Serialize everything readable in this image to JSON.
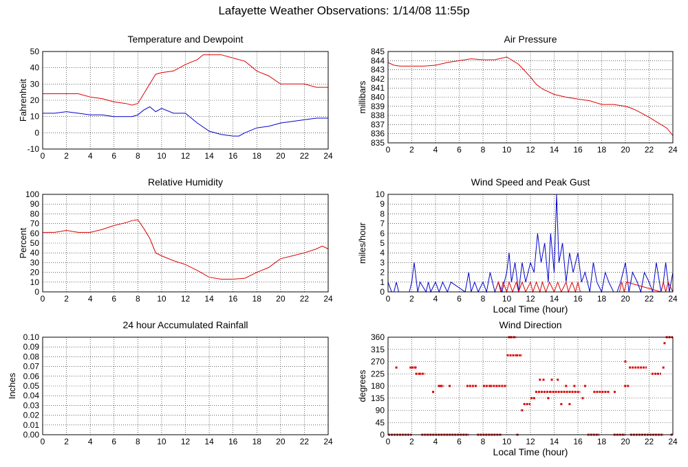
{
  "page": {
    "title": "Lafayette Weather Observations: 1/14/08 11:55p"
  },
  "colors": {
    "red": "#dd0000",
    "blue": "#0000cc",
    "grid": "#000000"
  },
  "chart_data": [
    {
      "id": "temp",
      "type": "line",
      "title": "Temperature and Dewpoint",
      "xlabel": "",
      "ylabel": "Fahrenheit",
      "xlim": [
        0,
        24
      ],
      "ylim": [
        -10,
        50
      ],
      "xticks": [
        "0",
        "2",
        "4",
        "6",
        "8",
        "10",
        "12",
        "14",
        "16",
        "18",
        "20",
        "22",
        "24"
      ],
      "yticks": [
        "-10",
        "0",
        "10",
        "20",
        "30",
        "40",
        "50"
      ],
      "grid": true,
      "series": [
        {
          "color": "#dd0000",
          "x": [
            0,
            1,
            2,
            3,
            4,
            5,
            6,
            7,
            7.5,
            8,
            8.5,
            9,
            9.5,
            10,
            11,
            12,
            13,
            13.5,
            14,
            15,
            16,
            17,
            18,
            19,
            20,
            21,
            22,
            23,
            24
          ],
          "y": [
            24,
            24,
            24,
            24,
            22,
            21,
            19,
            18,
            17,
            18,
            24,
            30,
            36,
            37,
            38,
            42,
            45,
            48,
            48,
            48,
            46,
            44,
            38,
            35,
            30,
            30,
            30,
            28,
            28
          ]
        },
        {
          "color": "#0000cc",
          "x": [
            0,
            1,
            2,
            3,
            4,
            5,
            6,
            7,
            7.5,
            8,
            8.5,
            9,
            9.5,
            10,
            11,
            12,
            13,
            14,
            15,
            16,
            16.5,
            17,
            18,
            19,
            20,
            21,
            22,
            23,
            24
          ],
          "y": [
            12,
            12,
            13,
            12,
            11,
            11,
            10,
            10,
            10,
            11,
            14,
            16,
            13,
            15,
            12,
            12,
            6,
            1,
            -1,
            -2,
            -2,
            0,
            3,
            4,
            6,
            7,
            8,
            9,
            9
          ]
        }
      ]
    },
    {
      "id": "pressure",
      "type": "line",
      "title": "Air Pressure",
      "xlabel": "",
      "ylabel": "millibars",
      "xlim": [
        0,
        24
      ],
      "ylim": [
        835,
        845
      ],
      "xticks": [
        "0",
        "2",
        "4",
        "6",
        "8",
        "10",
        "12",
        "14",
        "16",
        "18",
        "20",
        "22",
        "24"
      ],
      "yticks": [
        "835",
        "836",
        "837",
        "838",
        "839",
        "840",
        "841",
        "842",
        "843",
        "844",
        "845"
      ],
      "grid": true,
      "series": [
        {
          "color": "#dd0000",
          "x": [
            0,
            0.5,
            1,
            2,
            3,
            4,
            5,
            6,
            7,
            8,
            9,
            10,
            11,
            12,
            12.5,
            13,
            14,
            15,
            16,
            17,
            18,
            19,
            20,
            20.5,
            21,
            22,
            23,
            23.5,
            24
          ],
          "y": [
            843.8,
            843.5,
            843.4,
            843.4,
            843.4,
            843.5,
            843.8,
            844,
            844.2,
            844.1,
            844.1,
            844.4,
            843.6,
            842.2,
            841.4,
            840.9,
            840.3,
            840,
            839.8,
            839.6,
            839.2,
            839.2,
            839,
            838.8,
            838.5,
            837.8,
            837,
            836.6,
            835.8
          ]
        }
      ]
    },
    {
      "id": "humidity",
      "type": "line",
      "title": "Relative Humidity",
      "xlabel": "",
      "ylabel": "Percent",
      "xlim": [
        0,
        24
      ],
      "ylim": [
        0,
        100
      ],
      "xticks": [
        "0",
        "2",
        "4",
        "6",
        "8",
        "10",
        "12",
        "14",
        "16",
        "18",
        "20",
        "22",
        "24"
      ],
      "yticks": [
        "0",
        "10",
        "20",
        "30",
        "40",
        "50",
        "60",
        "70",
        "80",
        "90",
        "100"
      ],
      "grid": true,
      "series": [
        {
          "color": "#dd0000",
          "x": [
            0,
            1,
            2,
            3,
            4,
            5,
            6,
            7,
            7.5,
            8,
            8.5,
            9,
            9.5,
            10,
            11,
            12,
            13,
            14,
            15,
            16,
            17,
            18,
            19,
            20,
            21,
            22,
            23,
            23.5,
            24
          ],
          "y": [
            61,
            61,
            63,
            61,
            61,
            64,
            68,
            71,
            73,
            74,
            65,
            55,
            40,
            37,
            32,
            28,
            22,
            15,
            13,
            13,
            14,
            20,
            25,
            34,
            37,
            40,
            44,
            47,
            44
          ]
        }
      ]
    },
    {
      "id": "wind",
      "type": "line",
      "title": "Wind Speed and Peak Gust",
      "xlabel": "Local Time (hour)",
      "ylabel": "miles/hour",
      "xlim": [
        0,
        24
      ],
      "ylim": [
        0,
        10
      ],
      "xticks": [
        "0",
        "2",
        "4",
        "6",
        "8",
        "10",
        "12",
        "14",
        "16",
        "18",
        "20",
        "22",
        "24"
      ],
      "yticks": [
        "0",
        "1",
        "2",
        "3",
        "4",
        "5",
        "6",
        "7",
        "8",
        "9",
        "10"
      ],
      "grid": true,
      "series": [
        {
          "color": "#0000cc",
          "x": [
            0,
            0.3,
            0.5,
            0.7,
            0.9,
            1.8,
            2,
            2.2,
            2.5,
            2.7,
            3.2,
            3.4,
            3.6,
            4,
            4.3,
            4.6,
            5,
            5.3,
            6.5,
            6.8,
            7,
            7.3,
            7.6,
            8,
            8.3,
            8.6,
            9,
            9.3,
            9.6,
            10,
            10.2,
            10.4,
            10.7,
            11,
            11.3,
            11.6,
            12,
            12.3,
            12.6,
            12.9,
            13.2,
            13.5,
            13.7,
            14,
            14.2,
            14.4,
            14.7,
            15,
            15.3,
            15.6,
            16,
            16.3,
            16.6,
            17,
            17.3,
            17.6,
            18,
            18.3,
            18.6,
            19,
            19.3,
            19.6,
            20,
            20.3,
            20.6,
            21,
            21.3,
            21.6,
            22,
            22.3,
            22.6,
            23,
            23.2,
            23.4,
            23.7,
            24
          ],
          "y": [
            1,
            0,
            0,
            1,
            0,
            0,
            1,
            3,
            0,
            1,
            0,
            1,
            0,
            1,
            0,
            1,
            0,
            1,
            0,
            2,
            0,
            1,
            0,
            1,
            0,
            2,
            0,
            1,
            0,
            2,
            4,
            1,
            3,
            0,
            3,
            1,
            3,
            2,
            6,
            3,
            5,
            1,
            6,
            2,
            10,
            3,
            5,
            1,
            4,
            2,
            4,
            1,
            2,
            0,
            3,
            1,
            0,
            2,
            1,
            0,
            0,
            1,
            3,
            0,
            2,
            1,
            0,
            2,
            1,
            0,
            3,
            0,
            1,
            3,
            0,
            2
          ]
        },
        {
          "color": "#dd0000",
          "x": [
            0,
            9,
            9.3,
            9.5,
            9.7,
            10,
            10.2,
            10.5,
            10.8,
            11,
            11.3,
            11.6,
            12,
            12.2,
            12.5,
            12.8,
            13,
            13.3,
            13.6,
            14,
            14.3,
            14.6,
            15,
            15.2,
            15.5,
            15.8,
            16,
            16.2,
            19.5,
            19.7,
            19.9,
            20.1,
            23,
            23.2,
            23.4,
            23.6,
            24
          ],
          "y": [
            0,
            0,
            1,
            0,
            1,
            0,
            1,
            0,
            1,
            0,
            1,
            0,
            1,
            0,
            1,
            0,
            1,
            0,
            1,
            0,
            1,
            0,
            1,
            0,
            1,
            0,
            1,
            0,
            0,
            1,
            0,
            1,
            0,
            1,
            0,
            1,
            0
          ]
        }
      ]
    },
    {
      "id": "rain",
      "type": "line",
      "title": "24 hour Accumulated Rainfall",
      "xlabel": "",
      "ylabel": "Inches",
      "xlim": [
        0,
        24
      ],
      "ylim": [
        0,
        0.1
      ],
      "xticks": [
        "0",
        "2",
        "4",
        "6",
        "8",
        "10",
        "12",
        "14",
        "16",
        "18",
        "20",
        "22",
        "24"
      ],
      "yticks": [
        "0.00",
        "0.01",
        "0.02",
        "0.03",
        "0.04",
        "0.05",
        "0.06",
        "0.07",
        "0.08",
        "0.09",
        "0.10"
      ],
      "grid": true,
      "series": [
        {
          "color": "#dd0000",
          "x": [
            0,
            24
          ],
          "y": [
            0,
            0
          ]
        }
      ]
    },
    {
      "id": "direction",
      "type": "scatter",
      "title": "Wind Direction",
      "xlabel": "Local Time (hour)",
      "ylabel": "degrees",
      "xlim": [
        0,
        24
      ],
      "ylim": [
        0,
        360
      ],
      "xticks": [
        "0",
        "2",
        "4",
        "6",
        "8",
        "10",
        "12",
        "14",
        "16",
        "18",
        "20",
        "22",
        "24"
      ],
      "yticks": [
        "0",
        "45",
        "90",
        "135",
        "180",
        "225",
        "270",
        "315",
        "360"
      ],
      "grid": true,
      "series": [
        {
          "color": "#dd0000",
          "runs": [
            {
              "x": [
                0,
                2
              ],
              "y": 0
            },
            {
              "x": [
                2.8,
                6.8
              ],
              "y": 0
            },
            {
              "x": [
                7.5,
                9.6
              ],
              "y": 0
            },
            {
              "x": [
                16.8,
                17.8
              ],
              "y": 0
            },
            {
              "x": [
                19,
                20
              ],
              "y": 0
            },
            {
              "x": [
                20.4,
                23.2
              ],
              "y": 0
            },
            {
              "x": [
                23.8,
                24
              ],
              "y": 0
            },
            {
              "x": [
                2,
                2.4
              ],
              "y": 248
            },
            {
              "x": [
                2.3,
                2.7
              ],
              "y": 225
            },
            {
              "x": [
                2.6,
                3.1
              ],
              "y": 225
            },
            {
              "x": [
                4.2,
                4.7
              ],
              "y": 180
            },
            {
              "x": [
                6.6,
                7.5
              ],
              "y": 180
            },
            {
              "x": [
                8,
                8.6
              ],
              "y": 180
            },
            {
              "x": [
                8.6,
                10
              ],
              "y": 180
            },
            {
              "x": [
                10,
                10.8
              ],
              "y": 293
            },
            {
              "x": [
                10.8,
                11.3
              ],
              "y": 293
            },
            {
              "x": [
                10.3,
                10.8
              ],
              "y": 360
            },
            {
              "x": [
                11.4,
                12
              ],
              "y": 113
            },
            {
              "x": [
                12,
                12.4
              ],
              "y": 135
            },
            {
              "x": [
                12.4,
                13.6
              ],
              "y": 158
            },
            {
              "x": [
                13.6,
                16.2
              ],
              "y": 158
            },
            {
              "x": [
                17.3,
                18.7
              ],
              "y": 158
            },
            {
              "x": [
                19.9,
                20.3
              ],
              "y": 180
            },
            {
              "x": [
                20.3,
                21.8
              ],
              "y": 248
            },
            {
              "x": [
                22.2,
                23
              ],
              "y": 225
            },
            {
              "x": [
                23.4,
                24
              ],
              "y": 360
            }
          ],
          "x": [
            0.7,
            1.9,
            2.3,
            3.8,
            4.4,
            5.2,
            10.2,
            10.9,
            11.3,
            12.8,
            13.1,
            13.5,
            13.8,
            14.3,
            14.6,
            15,
            15.3,
            15.7,
            16.4,
            16.6,
            19.1,
            20,
            23.2,
            23.3
          ],
          "y": [
            248,
            248,
            248,
            158,
            180,
            180,
            360,
            0,
            90,
            203,
            203,
            135,
            203,
            203,
            113,
            180,
            113,
            180,
            135,
            180,
            158,
            270,
            248,
            338
          ]
        }
      ]
    }
  ]
}
